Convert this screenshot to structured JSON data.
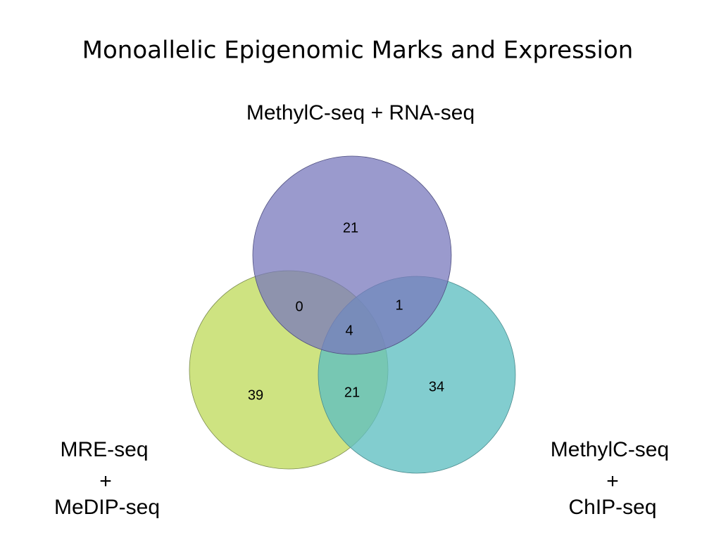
{
  "title": "Monoallelic Epigenomic Marks and Expression",
  "sets": [
    {
      "lines": [
        "MethylC-seq + RNA-seq"
      ]
    },
    {
      "lines": [
        "MRE-seq",
        "+",
        "MeDIP-seq"
      ]
    },
    {
      "lines": [
        "MethylC-seq",
        "+",
        "ChIP-seq"
      ]
    }
  ],
  "regions": {
    "top_only": 21,
    "top_left": 0,
    "top_right": 1,
    "all": 4,
    "left_only": 39,
    "left_right": 21,
    "right_only": 34
  }
}
